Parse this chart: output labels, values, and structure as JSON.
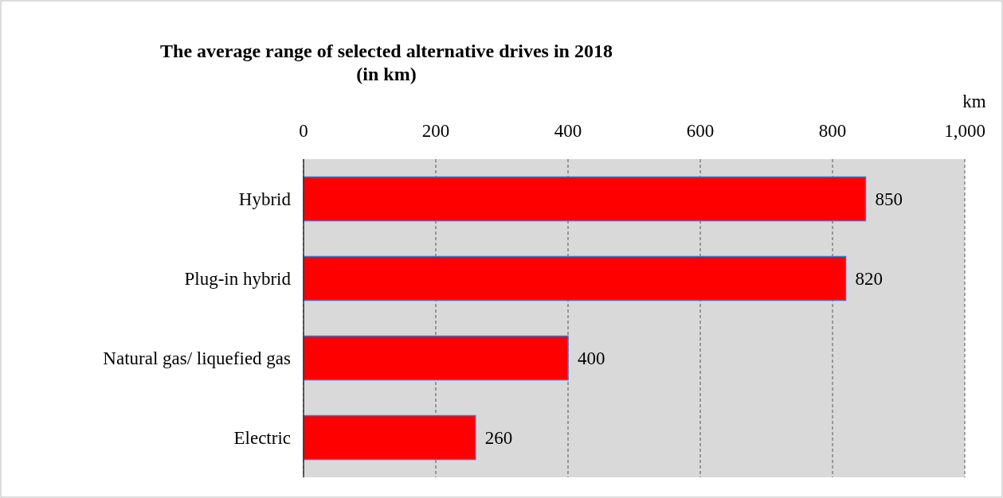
{
  "chart_data": {
    "type": "bar",
    "orientation": "horizontal",
    "title": "The average range of selected alternative drives in 2018\n(in km)",
    "xlabel": "km",
    "categories": [
      "Hybrid",
      "Plug-in hybrid",
      "Natural gas/ liquefied gas",
      "Electric"
    ],
    "values": [
      850,
      820,
      400,
      260
    ],
    "color": "#ff0000",
    "xlim": [
      0,
      1000
    ],
    "xticks": [
      0,
      200,
      400,
      600,
      800,
      {
        "value": 1000,
        "label": "1,000"
      }
    ],
    "grid": "x",
    "data_labels": true
  }
}
